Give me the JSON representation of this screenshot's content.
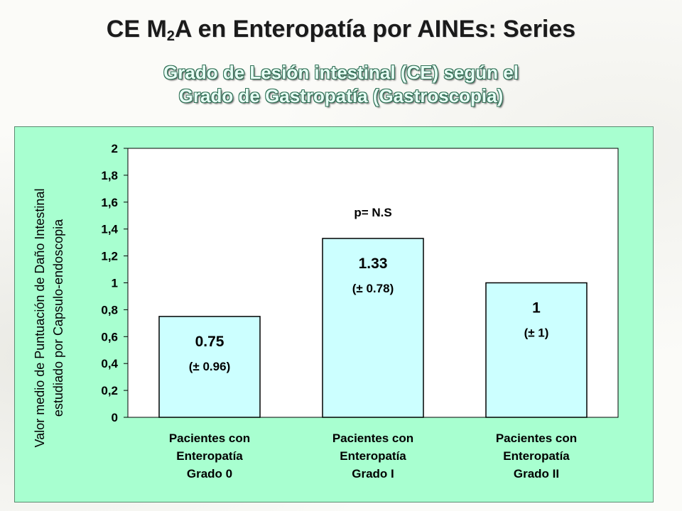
{
  "title": {
    "prefix": "CE M",
    "subscript": "2",
    "rest": "A en Enteropatía por AINEs: Series"
  },
  "subtitle_lines": [
    "Grado de Lesión intestinal (CE) según el",
    "Grado de Gastropatía (Gastroscopia)"
  ],
  "colors": {
    "panel_bg": "#a8ffd0",
    "plot_bg": "#ffffff",
    "bar_fill": "#ccffff",
    "bar_stroke": "#000000"
  },
  "chart_data": {
    "type": "bar",
    "ylabel_lines": [
      "Valor medio de Puntuación de Daño Intestinal",
      "estudiado por Capsulo-endoscopia"
    ],
    "ylim": [
      0,
      2
    ],
    "yticks": [
      "0",
      "0,2",
      "0,4",
      "0,6",
      "0,8",
      "1",
      "1,2",
      "1,4",
      "1,6",
      "1,8",
      "2"
    ],
    "grid": false,
    "categories": [
      [
        "Pacientes con",
        "Enteropatía",
        "Grado 0"
      ],
      [
        "Pacientes con",
        "Enteropatía",
        "Grado I"
      ],
      [
        "Pacientes con",
        "Enteropatía",
        "Grado II"
      ]
    ],
    "values": [
      0.75,
      1.33,
      1.0
    ],
    "value_labels": [
      "0.75",
      "1.33",
      "1"
    ],
    "sd_labels": [
      "(± 0.96)",
      "(± 0.78)",
      "(± 1)"
    ],
    "annotation": "p= N.S"
  }
}
